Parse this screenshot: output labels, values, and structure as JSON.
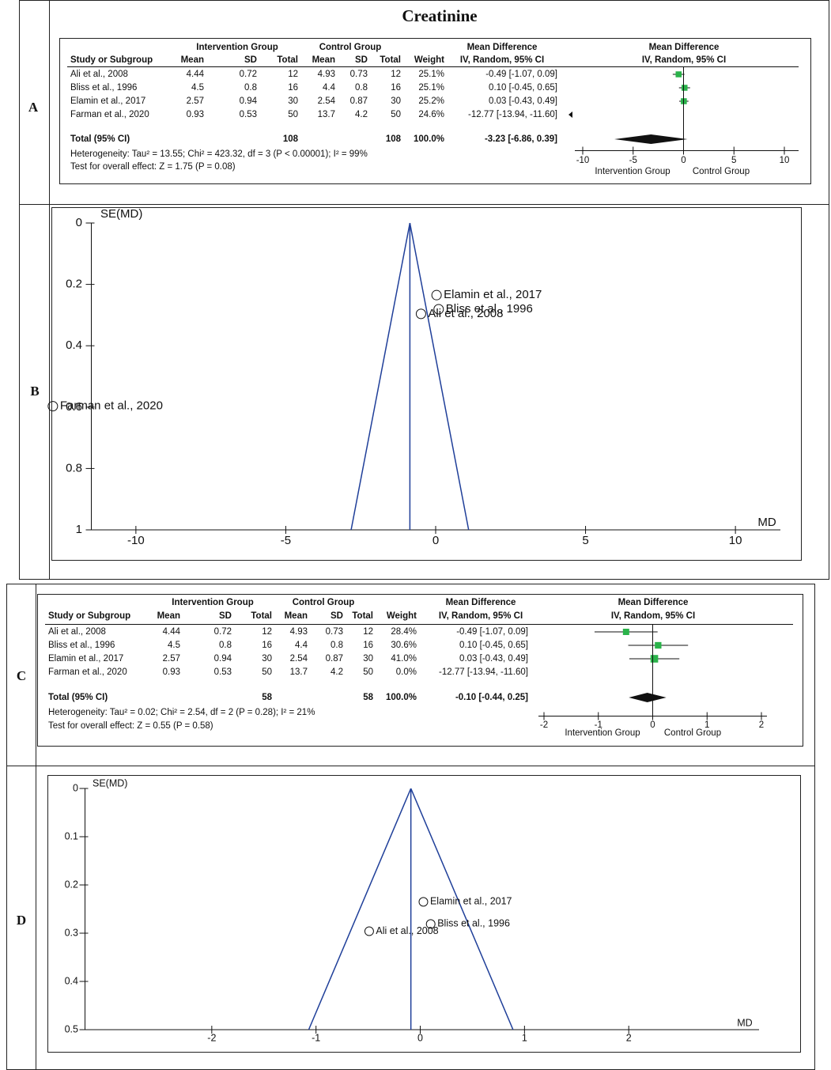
{
  "chart_data": [
    {
      "type": "forest",
      "panel": "A",
      "title": "Creatinine",
      "group_headers": [
        "Intervention Group",
        "Control Group",
        "Mean Difference",
        "Mean Difference"
      ],
      "columns": [
        "Study or Subgroup",
        "Mean",
        "SD",
        "Total",
        "Mean",
        "SD",
        "Total",
        "Weight",
        "IV, Random, 95% CI",
        "IV, Random, 95% CI"
      ],
      "rows": [
        {
          "study": "Ali et al., 2008",
          "int_mean": 4.44,
          "int_sd": 0.72,
          "int_total": 12,
          "ctl_mean": 4.93,
          "ctl_sd": 0.73,
          "ctl_total": 12,
          "weight": 25.1,
          "weight_label": "25.1%",
          "md": -0.49,
          "ci": [
            -1.07,
            0.09
          ],
          "ci_label": "-0.49 [-1.07, 0.09]"
        },
        {
          "study": "Bliss et al., 1996",
          "int_mean": 4.5,
          "int_sd": 0.8,
          "int_total": 16,
          "ctl_mean": 4.4,
          "ctl_sd": 0.8,
          "ctl_total": 16,
          "weight": 25.1,
          "weight_label": "25.1%",
          "md": 0.1,
          "ci": [
            -0.45,
            0.65
          ],
          "ci_label": "0.10 [-0.45, 0.65]"
        },
        {
          "study": "Elamin et al., 2017",
          "int_mean": 2.57,
          "int_sd": 0.94,
          "int_total": 30,
          "ctl_mean": 2.54,
          "ctl_sd": 0.87,
          "ctl_total": 30,
          "weight": 25.2,
          "weight_label": "25.2%",
          "md": 0.03,
          "ci": [
            -0.43,
            0.49
          ],
          "ci_label": "0.03 [-0.43, 0.49]"
        },
        {
          "study": "Farman et al., 2020",
          "int_mean": 0.93,
          "int_sd": 0.53,
          "int_total": 50,
          "ctl_mean": 13.7,
          "ctl_sd": 4.2,
          "ctl_total": 50,
          "weight": 24.6,
          "weight_label": "24.6%",
          "md": -12.77,
          "ci": [
            -13.94,
            -11.6
          ],
          "ci_label": "-12.77 [-13.94, -11.60]"
        }
      ],
      "total": {
        "label": "Total (95% CI)",
        "int_total": 108,
        "ctl_total": 108,
        "weight_label": "100.0%",
        "md": -3.23,
        "ci": [
          -6.86,
          0.39
        ],
        "ci_label": "-3.23 [-6.86, 0.39]"
      },
      "heterogeneity": "Heterogeneity: Tau² = 13.55; Chi² = 423.32, df = 3 (P < 0.00001); I² = 99%",
      "overall_effect": "Test for overall effect: Z = 1.75 (P = 0.08)",
      "xlim": [
        -10,
        10
      ],
      "xticks": [
        -10,
        -5,
        0,
        5,
        10
      ],
      "xlabels": [
        "Intervention Group",
        "Control Group"
      ],
      "color": "#2ab34a"
    },
    {
      "type": "funnel",
      "panel": "B",
      "ylabel": "SE(MD)",
      "xlabel": "MD",
      "xlim": [
        -11.5,
        11.5
      ],
      "xticks": [
        -10,
        -5,
        0,
        5,
        10
      ],
      "ylim": [
        0,
        1
      ],
      "yticks": [
        0,
        0.2,
        0.4,
        0.6,
        0.8,
        1
      ],
      "y_inverted": true,
      "center": -0.86,
      "funnel_base": [
        -2.82,
        1.1
      ],
      "color": "#1f3f99",
      "points": [
        {
          "label": "Elamin et al., 2017",
          "md": 0.03,
          "se": 0.235
        },
        {
          "label": "Bliss et al., 1996",
          "md": 0.1,
          "se": 0.281
        },
        {
          "label": "Ali et al., 2008",
          "md": -0.49,
          "se": 0.296
        },
        {
          "label": "Farman et al., 2020",
          "md": -12.77,
          "se": 0.597
        }
      ]
    },
    {
      "type": "forest",
      "panel": "C",
      "group_headers": [
        "Intervention Group",
        "Control Group",
        "Mean Difference",
        "Mean Difference"
      ],
      "columns": [
        "Study or Subgroup",
        "Mean",
        "SD",
        "Total",
        "Mean",
        "SD",
        "Total",
        "Weight",
        "IV, Random, 95% CI",
        "IV, Random, 95% CI"
      ],
      "rows": [
        {
          "study": "Ali et al., 2008",
          "int_mean": 4.44,
          "int_sd": 0.72,
          "int_total": 12,
          "ctl_mean": 4.93,
          "ctl_sd": 0.73,
          "ctl_total": 12,
          "weight": 28.4,
          "weight_label": "28.4%",
          "md": -0.49,
          "ci": [
            -1.07,
            0.09
          ],
          "ci_label": "-0.49 [-1.07, 0.09]"
        },
        {
          "study": "Bliss et al., 1996",
          "int_mean": 4.5,
          "int_sd": 0.8,
          "int_total": 16,
          "ctl_mean": 4.4,
          "ctl_sd": 0.8,
          "ctl_total": 16,
          "weight": 30.6,
          "weight_label": "30.6%",
          "md": 0.1,
          "ci": [
            -0.45,
            0.65
          ],
          "ci_label": "0.10 [-0.45, 0.65]"
        },
        {
          "study": "Elamin et al., 2017",
          "int_mean": 2.57,
          "int_sd": 0.94,
          "int_total": 30,
          "ctl_mean": 2.54,
          "ctl_sd": 0.87,
          "ctl_total": 30,
          "weight": 41.0,
          "weight_label": "41.0%",
          "md": 0.03,
          "ci": [
            -0.43,
            0.49
          ],
          "ci_label": "0.03 [-0.43, 0.49]"
        },
        {
          "study": "Farman et al., 2020",
          "int_mean": 0.93,
          "int_sd": 0.53,
          "int_total": 50,
          "ctl_mean": 13.7,
          "ctl_sd": 4.2,
          "ctl_total": 50,
          "weight": 0.0,
          "weight_label": "0.0%",
          "md": -12.77,
          "ci": [
            -13.94,
            -11.6
          ],
          "ci_label": "-12.77 [-13.94, -11.60]"
        }
      ],
      "total": {
        "label": "Total (95% CI)",
        "int_total": 58,
        "ctl_total": 58,
        "weight_label": "100.0%",
        "md": -0.1,
        "ci": [
          -0.44,
          0.25
        ],
        "ci_label": "-0.10 [-0.44, 0.25]"
      },
      "heterogeneity": "Heterogeneity: Tau² = 0.02; Chi² = 2.54, df = 2 (P = 0.28); I² = 21%",
      "overall_effect": "Test for overall effect: Z = 0.55 (P = 0.58)",
      "xlim": [
        -2,
        2
      ],
      "xticks": [
        -2,
        -1,
        0,
        1,
        2
      ],
      "xlabels": [
        "Intervention Group",
        "Control Group"
      ],
      "color": "#2ab34a"
    },
    {
      "type": "funnel",
      "panel": "D",
      "ylabel": "SE(MD)",
      "xlabel": "MD",
      "xlim": [
        -3.22,
        3.25
      ],
      "xticks": [
        -2,
        -1,
        0,
        1,
        2
      ],
      "ylim": [
        0,
        0.5
      ],
      "yticks": [
        0,
        0.1,
        0.2,
        0.3,
        0.4,
        0.5
      ],
      "y_inverted": true,
      "center": -0.09,
      "funnel_base": [
        -1.07,
        0.89
      ],
      "color": "#1f3f99",
      "points": [
        {
          "label": "Elamin et al., 2017",
          "md": 0.03,
          "se": 0.235
        },
        {
          "label": "Bliss et al., 1996",
          "md": 0.1,
          "se": 0.281
        },
        {
          "label": "Ali et al., 2008",
          "md": -0.49,
          "se": 0.296
        }
      ]
    }
  ]
}
